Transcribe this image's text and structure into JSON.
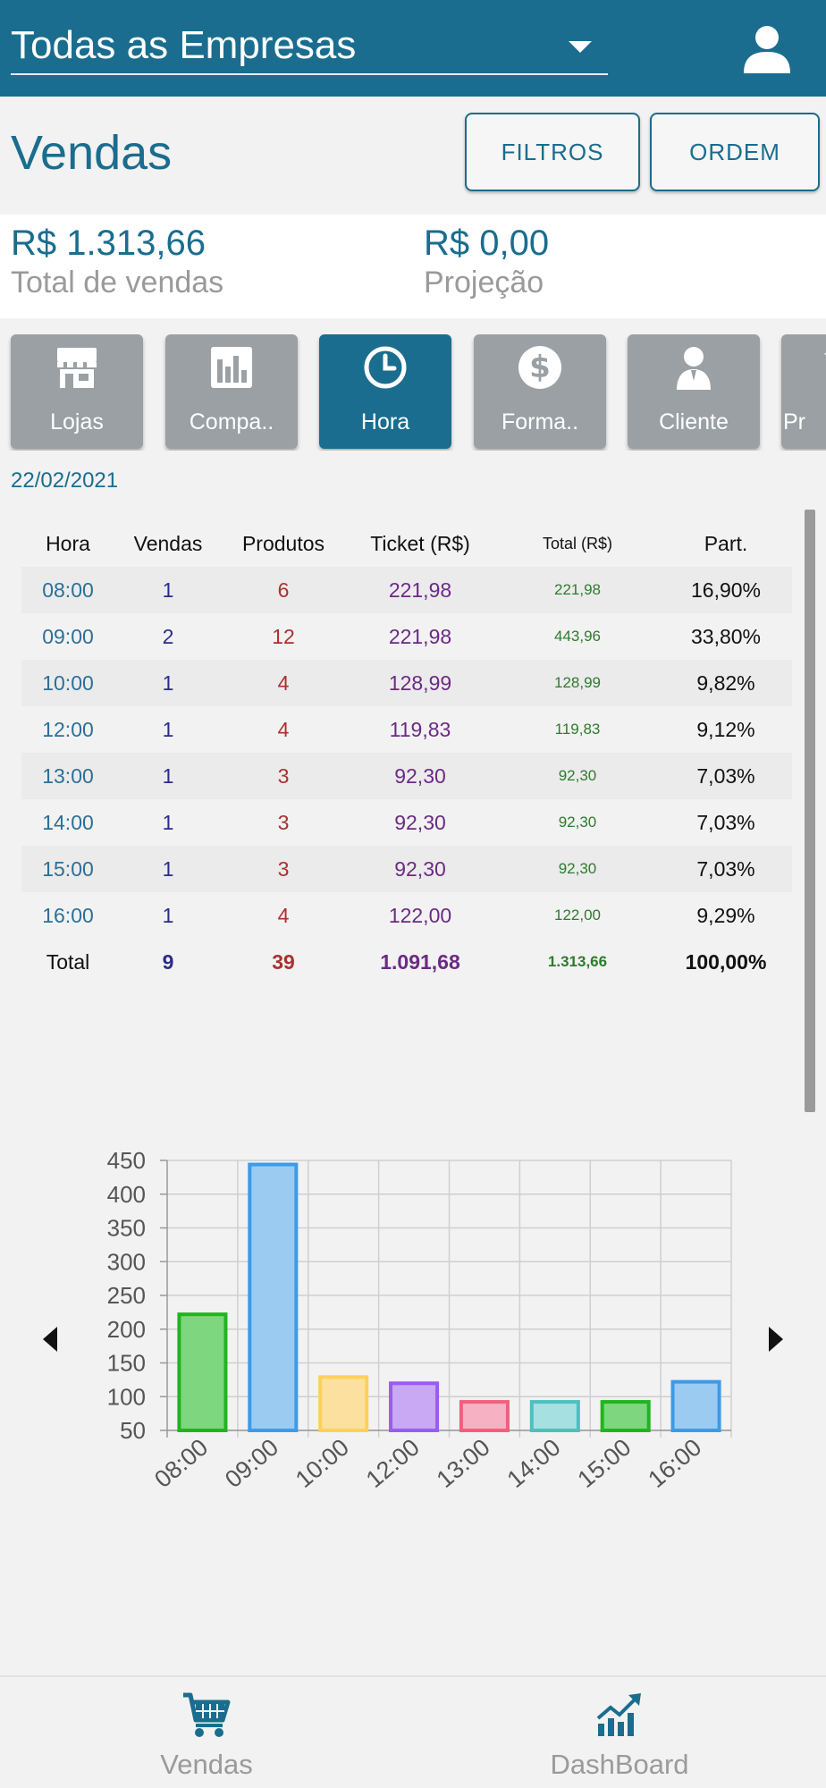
{
  "header": {
    "company_selector": "Todas as Empresas",
    "user_icon": "user-icon"
  },
  "page": {
    "title": "Vendas",
    "filters_button": "FILTROS",
    "order_button": "ORDEM"
  },
  "summary": {
    "total_value": "R$ 1.313,66",
    "total_label": "Total de vendas",
    "projection_value": "R$ 0,00",
    "projection_label": "Projeção"
  },
  "categories": [
    {
      "label": "Lojas",
      "icon": "store-icon"
    },
    {
      "label": "Compa..",
      "icon": "bar-chart-icon"
    },
    {
      "label": "Hora",
      "icon": "clock-icon",
      "active": true
    },
    {
      "label": "Forma..",
      "icon": "dollar-icon"
    },
    {
      "label": "Cliente",
      "icon": "person-icon"
    },
    {
      "label": "Pr",
      "icon": "partial-icon"
    }
  ],
  "date": "22/02/2021",
  "table": {
    "headers": [
      "Hora",
      "Vendas",
      "Produtos",
      "Ticket (R$)",
      "Total (R$)",
      "Part."
    ],
    "rows": [
      [
        "08:00",
        "1",
        "6",
        "221,98",
        "221,98",
        "16,90%"
      ],
      [
        "09:00",
        "2",
        "12",
        "221,98",
        "443,96",
        "33,80%"
      ],
      [
        "10:00",
        "1",
        "4",
        "128,99",
        "128,99",
        "9,82%"
      ],
      [
        "12:00",
        "1",
        "4",
        "119,83",
        "119,83",
        "9,12%"
      ],
      [
        "13:00",
        "1",
        "3",
        "92,30",
        "92,30",
        "7,03%"
      ],
      [
        "14:00",
        "1",
        "3",
        "92,30",
        "92,30",
        "7,03%"
      ],
      [
        "15:00",
        "1",
        "3",
        "92,30",
        "92,30",
        "7,03%"
      ],
      [
        "16:00",
        "1",
        "4",
        "122,00",
        "122,00",
        "9,29%"
      ]
    ],
    "total": [
      "Total",
      "9",
      "39",
      "1.091,68",
      "1.313,66",
      "100,00%"
    ]
  },
  "chart_data": {
    "type": "bar",
    "categories": [
      "08:00",
      "09:00",
      "10:00",
      "12:00",
      "13:00",
      "14:00",
      "15:00",
      "16:00"
    ],
    "values": [
      221.98,
      443.96,
      128.99,
      119.83,
      92.3,
      92.3,
      92.3,
      122.0
    ],
    "ylim": [
      50,
      450
    ],
    "yticks": [
      50,
      100,
      150,
      200,
      250,
      300,
      350,
      400,
      450
    ],
    "grid": true,
    "colors": [
      {
        "fill": "#7ed67e",
        "stroke": "#1fb51f"
      },
      {
        "fill": "#9ccbf2",
        "stroke": "#3d9be8"
      },
      {
        "fill": "#fbe0a0",
        "stroke": "#fdd05a"
      },
      {
        "fill": "#c9a8f4",
        "stroke": "#9a5cf0"
      },
      {
        "fill": "#f6b1c2",
        "stroke": "#f0607e"
      },
      {
        "fill": "#a6e0e0",
        "stroke": "#4cc0c0"
      },
      {
        "fill": "#7ed67e",
        "stroke": "#1fb51f"
      },
      {
        "fill": "#9ccbf2",
        "stroke": "#3d9be8"
      }
    ]
  },
  "bottom_nav": [
    {
      "label": "Vendas",
      "icon": "cart-icon"
    },
    {
      "label": "DashBoard",
      "icon": "trend-chart-icon"
    }
  ],
  "colors": {
    "primary": "#1a6d8e",
    "card_inactive": "#9aa0a4",
    "muted_text": "#9a9a9a"
  }
}
